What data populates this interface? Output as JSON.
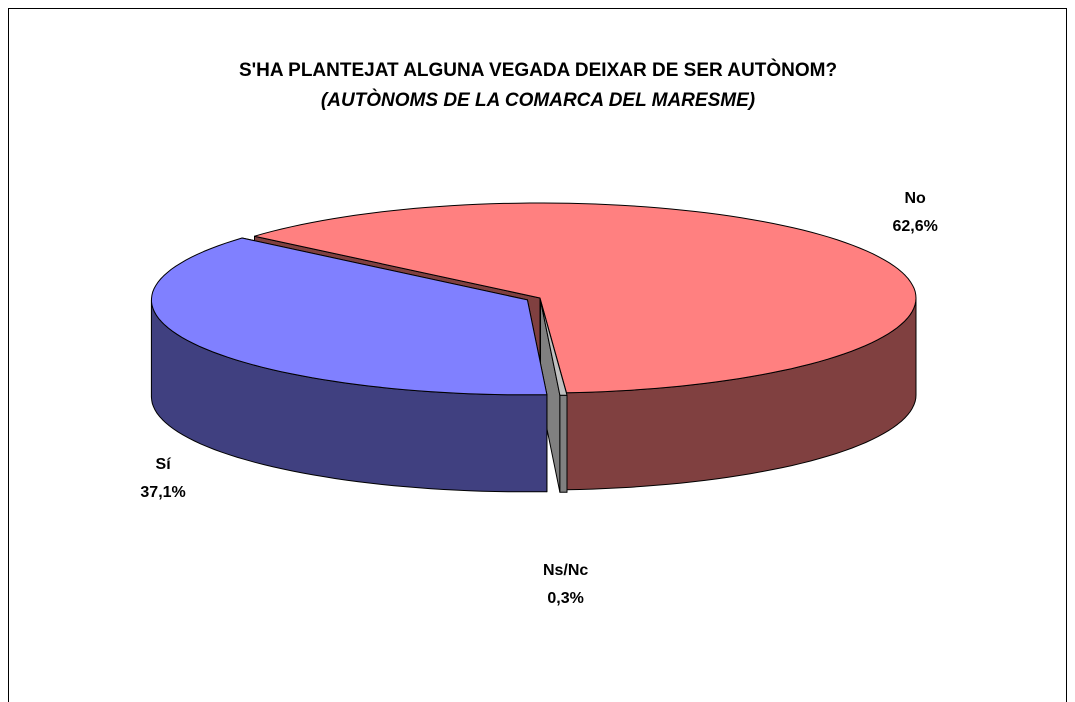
{
  "chart_data": {
    "type": "pie3d",
    "title": "S'HA PLANTEJAT ALGUNA VEGADA DEIXAR DE SER AUTÒNOM?",
    "subtitle": "(AUTÒNOMS DE LA COMARCA DEL MARESME)",
    "categories": [
      "No",
      "Ns/Nc",
      "Sí"
    ],
    "values": [
      62.6,
      0.3,
      37.1
    ],
    "value_labels": [
      "62,6%",
      "0,3%",
      "37,1%"
    ],
    "colors": [
      "#ff8080",
      "#c0c0c0",
      "#8080ff"
    ],
    "side_colors": [
      "#804040",
      "#808080",
      "#404080"
    ]
  }
}
